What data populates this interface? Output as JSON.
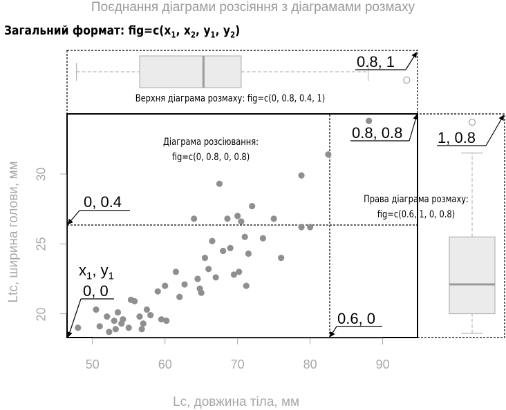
{
  "figure": {
    "title": "Поєднання діаграми розсіяння з діаграмами розмаху",
    "heading": {
      "prefix": "Загальний формат: fig=c(",
      "x1": "x",
      "x1_sub": "1",
      "x2": "x",
      "x2_sub": "2",
      "y1": "y",
      "y1_sub": "1",
      "y2": "y",
      "y2_sub": "2",
      "suffix": ")"
    },
    "annotations": {
      "top_boxplot": "Верхня діаграма розмаху: fig=c(0, 0.8, 0.4, 1)",
      "scatter_line1": "Діаграма розсіювання:",
      "scatter_line2": "fig=c(0, 0.8, 0, 0.8)",
      "right_line1": "Права діаграма розмаху:",
      "right_line2": "fig=c(0.6, 1, 0, 0.8)"
    },
    "corner_labels": {
      "c08_1": "0.8, 1",
      "c08_08": "0.8, 0.8",
      "c1_08": "1, 0.8",
      "c0_04": "0, 0.4",
      "c06_0": "0.6, 0",
      "c0_0": "0, 0",
      "x1y1_x": "x",
      "x1y1_x_sub": "1",
      "x1y1_sep": ", ",
      "x1y1_y": "y",
      "x1y1_y_sub": "1"
    },
    "colors": {
      "points": "#8f8f8f",
      "box_fill": "#ebebeb",
      "box_border": "#a8a8a8",
      "median": "#9a9a9a",
      "axis_text": "#a8a8a8"
    }
  },
  "chart_data": {
    "type": "scatter",
    "xlabel": "Lc, довжина тіла, мм",
    "ylabel": "Ltc, ширина голови, мм",
    "xlim": [
      46.5,
      94.8
    ],
    "ylim": [
      18.3,
      34.3
    ],
    "x_ticks": [
      50,
      60,
      70,
      80,
      90
    ],
    "y_ticks": [
      20,
      25,
      30
    ],
    "points": [
      [
        48,
        19
      ],
      [
        50.5,
        20.3
      ],
      [
        51,
        19.1
      ],
      [
        52,
        19.8
      ],
      [
        52.3,
        18.7
      ],
      [
        53,
        19.5
      ],
      [
        53.2,
        18.9
      ],
      [
        53.5,
        20.1
      ],
      [
        54,
        19.3
      ],
      [
        54.2,
        19.6
      ],
      [
        55,
        19.0
      ],
      [
        55.3,
        21.0
      ],
      [
        55.8,
        20.9
      ],
      [
        56.5,
        19.8
      ],
      [
        56.8,
        18.9
      ],
      [
        57,
        19.3
      ],
      [
        57.5,
        20.3
      ],
      [
        58,
        19.9
      ],
      [
        59,
        21.6
      ],
      [
        59.5,
        19.6
      ],
      [
        60,
        22.0
      ],
      [
        60.2,
        19.5
      ],
      [
        61.5,
        23.0
      ],
      [
        62,
        21.2
      ],
      [
        62.7,
        22.1
      ],
      [
        64,
        26.8
      ],
      [
        64.5,
        22.5
      ],
      [
        64.8,
        21.8
      ],
      [
        65,
        21.5
      ],
      [
        65.5,
        24.0
      ],
      [
        66,
        23.2
      ],
      [
        66.5,
        25.2
      ],
      [
        67,
        22.6
      ],
      [
        67.5,
        29.3
      ],
      [
        68,
        24.5
      ],
      [
        68.6,
        26.8
      ],
      [
        69,
        24.7
      ],
      [
        69.5,
        22.8
      ],
      [
        70,
        27.0
      ],
      [
        70.2,
        23.0
      ],
      [
        70.5,
        26.6
      ],
      [
        71,
        25.5
      ],
      [
        71.2,
        22.0
      ],
      [
        71.5,
        24.3
      ],
      [
        72,
        27.7
      ],
      [
        73.5,
        25.4
      ],
      [
        75,
        26.8
      ],
      [
        76,
        24.0
      ],
      [
        78.8,
        29.9
      ],
      [
        78.8,
        26.2
      ],
      [
        80,
        26.2
      ],
      [
        82.5,
        31.4
      ],
      [
        88.1,
        33.8
      ]
    ],
    "top_boxplot": {
      "variable": "Lc",
      "whisker_low": 47.8,
      "q1": 56.5,
      "median": 65.3,
      "q3": 70.5,
      "whisker_high": 88.0,
      "outliers": [
        93.3
      ]
    },
    "right_boxplot": {
      "variable": "Ltc",
      "whisker_low": 18.6,
      "q1": 20.0,
      "median": 22.1,
      "q3": 25.5,
      "whisker_high": 31.5,
      "outliers": [
        33.8
      ]
    }
  }
}
